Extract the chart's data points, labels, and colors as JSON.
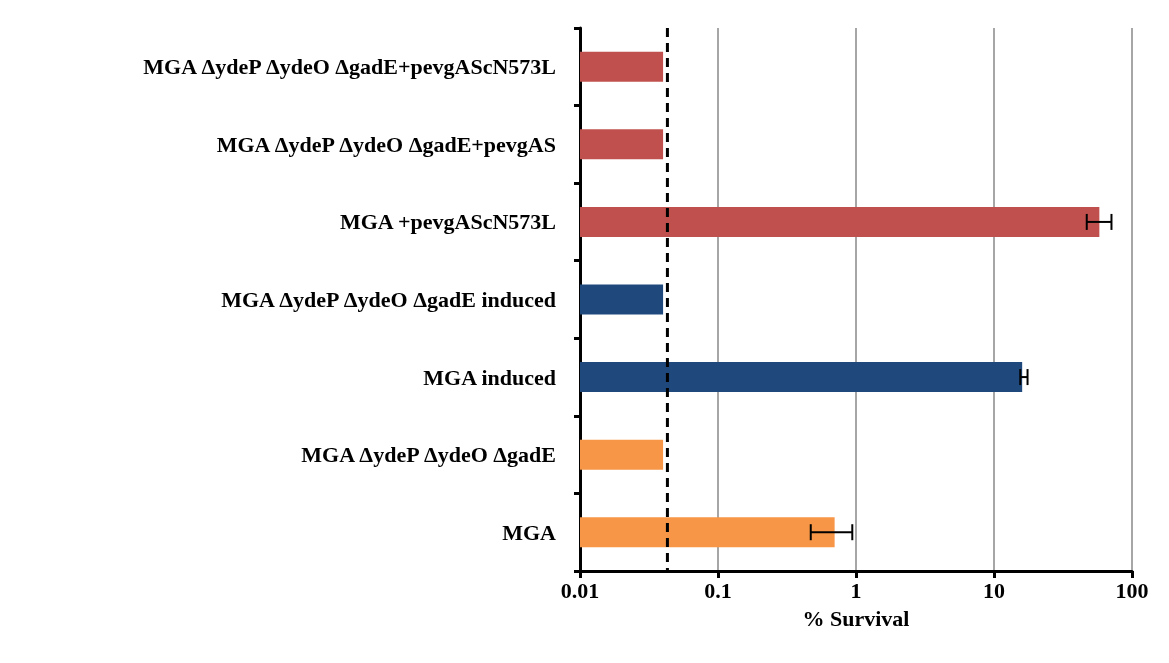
{
  "chart_data": {
    "type": "bar",
    "orientation": "horizontal",
    "log": "x",
    "xlabel": "% Survival",
    "categories": [
      "MGA ΔydeP ΔydeO ΔgadE+pevgAScN573L",
      "MGA ΔydeP ΔydeO ΔgadE+pevgAS",
      "MGA +pevgAScN573L",
      "MGA ΔydeP ΔydeO ΔgadE induced",
      "MGA induced",
      "MGA ΔydeP ΔydeO ΔgadE",
      "MGA"
    ],
    "values": [
      0.04,
      0.04,
      58,
      0.04,
      16,
      0.04,
      0.7
    ],
    "colors": [
      "#c0504d",
      "#c0504d",
      "#c0504d",
      "#1f497d",
      "#1f497d",
      "#f79646",
      "#f79646"
    ],
    "errors": [
      null,
      null,
      [
        47,
        71
      ],
      null,
      [
        15.5,
        17.5
      ],
      null,
      [
        0.47,
        0.94
      ]
    ],
    "xlim": [
      0.01,
      100
    ],
    "xticks": [
      0.01,
      0.1,
      1,
      10,
      100
    ],
    "grid": "x",
    "ref_lines": [
      {
        "axis": "x",
        "value": 0.043,
        "color": "#000000",
        "line_style": "dashed"
      }
    ]
  }
}
